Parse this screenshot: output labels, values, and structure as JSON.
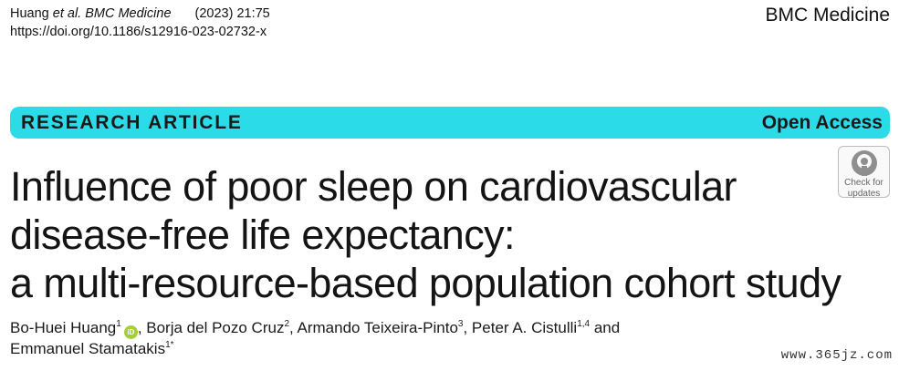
{
  "header": {
    "authors_prefix": "Huang ",
    "et_al_journal": "et al. BMC Medicine",
    "year_volume": "(2023) 21:75",
    "doi": "https://doi.org/10.1186/s12916-023-02732-x",
    "journal_name": "BMC Medicine"
  },
  "banner": {
    "article_type": "RESEARCH ARTICLE",
    "access": "Open Access",
    "color": "#2bdbe8"
  },
  "title": {
    "line1": "Influence of poor sleep on cardiovascular",
    "line2": "disease-free life expectancy:",
    "line3": "a multi-resource-based population cohort study"
  },
  "badge": {
    "line1": "Check for",
    "line2": "updates",
    "icon": "crossmark-icon"
  },
  "authors": {
    "a1": "Bo-Huei Huang",
    "a1_sup": "1",
    "orcid": "iD",
    "a2": ", Borja del Pozo Cruz",
    "a2_sup": "2",
    "a3": ", Armando Teixeira-Pinto",
    "a3_sup": "3",
    "a4": ", Peter A. Cistulli",
    "a4_sup": "1,4",
    "and": " and",
    "a5": "Emmanuel Stamatakis",
    "a5_sup": "1*"
  },
  "watermark": "www.365jz.com"
}
